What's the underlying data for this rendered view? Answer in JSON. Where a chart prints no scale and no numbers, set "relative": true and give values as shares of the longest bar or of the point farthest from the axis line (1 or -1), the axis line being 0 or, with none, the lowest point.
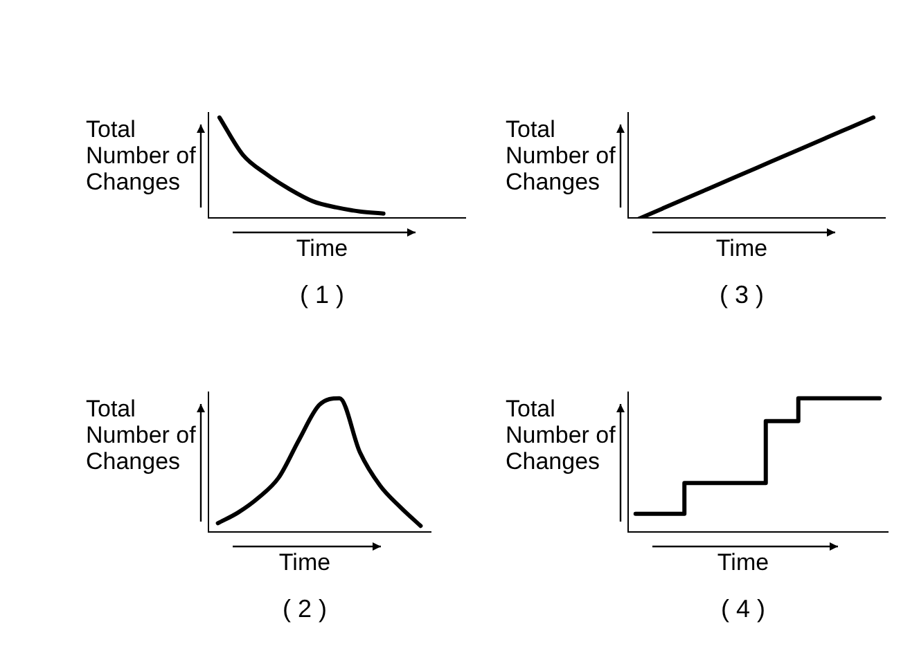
{
  "chart_data": [
    {
      "type": "line",
      "title": "( 1 )",
      "xlabel": "Time",
      "ylabel": "Total Number of Changes",
      "relative": true,
      "grid": false,
      "legend": false,
      "tick_labels": false,
      "marker": "none",
      "line_style": "solid",
      "categories": [
        null,
        null,
        null,
        null,
        null,
        null,
        null,
        null,
        null,
        null,
        null
      ],
      "series": [
        {
          "color": "#000000",
          "values": [
            1.0,
            0.63,
            0.44,
            0.29,
            0.17,
            0.11,
            0.07,
            0.05,
            null,
            null,
            null
          ]
        }
      ]
    },
    {
      "type": "line",
      "title": "( 3 )",
      "xlabel": "Time",
      "ylabel": "Total Number of Changes",
      "relative": true,
      "grid": false,
      "legend": false,
      "tick_labels": false,
      "marker": "none",
      "line_style": "solid",
      "categories": [
        null,
        null,
        null,
        null,
        null,
        null,
        null,
        null,
        null,
        null,
        null
      ],
      "series": [
        {
          "color": "#000000",
          "values": [
            0,
            0.1,
            0.2,
            0.3,
            0.4,
            0.5,
            0.6,
            0.7,
            0.8,
            0.9,
            1.0
          ]
        }
      ]
    },
    {
      "type": "line",
      "title": "( 2 )",
      "xlabel": "Time",
      "ylabel": "Total Number of Changes",
      "relative": true,
      "grid": false,
      "legend": false,
      "tick_labels": false,
      "marker": "none",
      "line_style": "solid",
      "categories": [
        null,
        null,
        null,
        null,
        null,
        null,
        null,
        null,
        null,
        null,
        null
      ],
      "series": [
        {
          "color": "#000000",
          "values": [
            0.07,
            0.15,
            0.26,
            0.41,
            0.69,
            0.95,
            1.0,
            0.6,
            0.35,
            0.19,
            0.05
          ]
        }
      ]
    },
    {
      "type": "step",
      "title": "( 4 )",
      "xlabel": "Time",
      "ylabel": "Total Number of Changes",
      "relative": true,
      "grid": false,
      "legend": false,
      "tick_labels": false,
      "marker": "none",
      "line_style": "solid",
      "categories": [
        null,
        null,
        null,
        null,
        null,
        null,
        null,
        null,
        null,
        null,
        null,
        null,
        null,
        null,
        null,
        null
      ],
      "series": [
        {
          "color": "#000000",
          "values": [
            0.14,
            0.14,
            0.14,
            0.14,
            0.37,
            0.37,
            0.37,
            0.37,
            0.37,
            0.83,
            0.83,
            1.0,
            1.0,
            1.0,
            1.0,
            1.0
          ]
        }
      ]
    }
  ]
}
